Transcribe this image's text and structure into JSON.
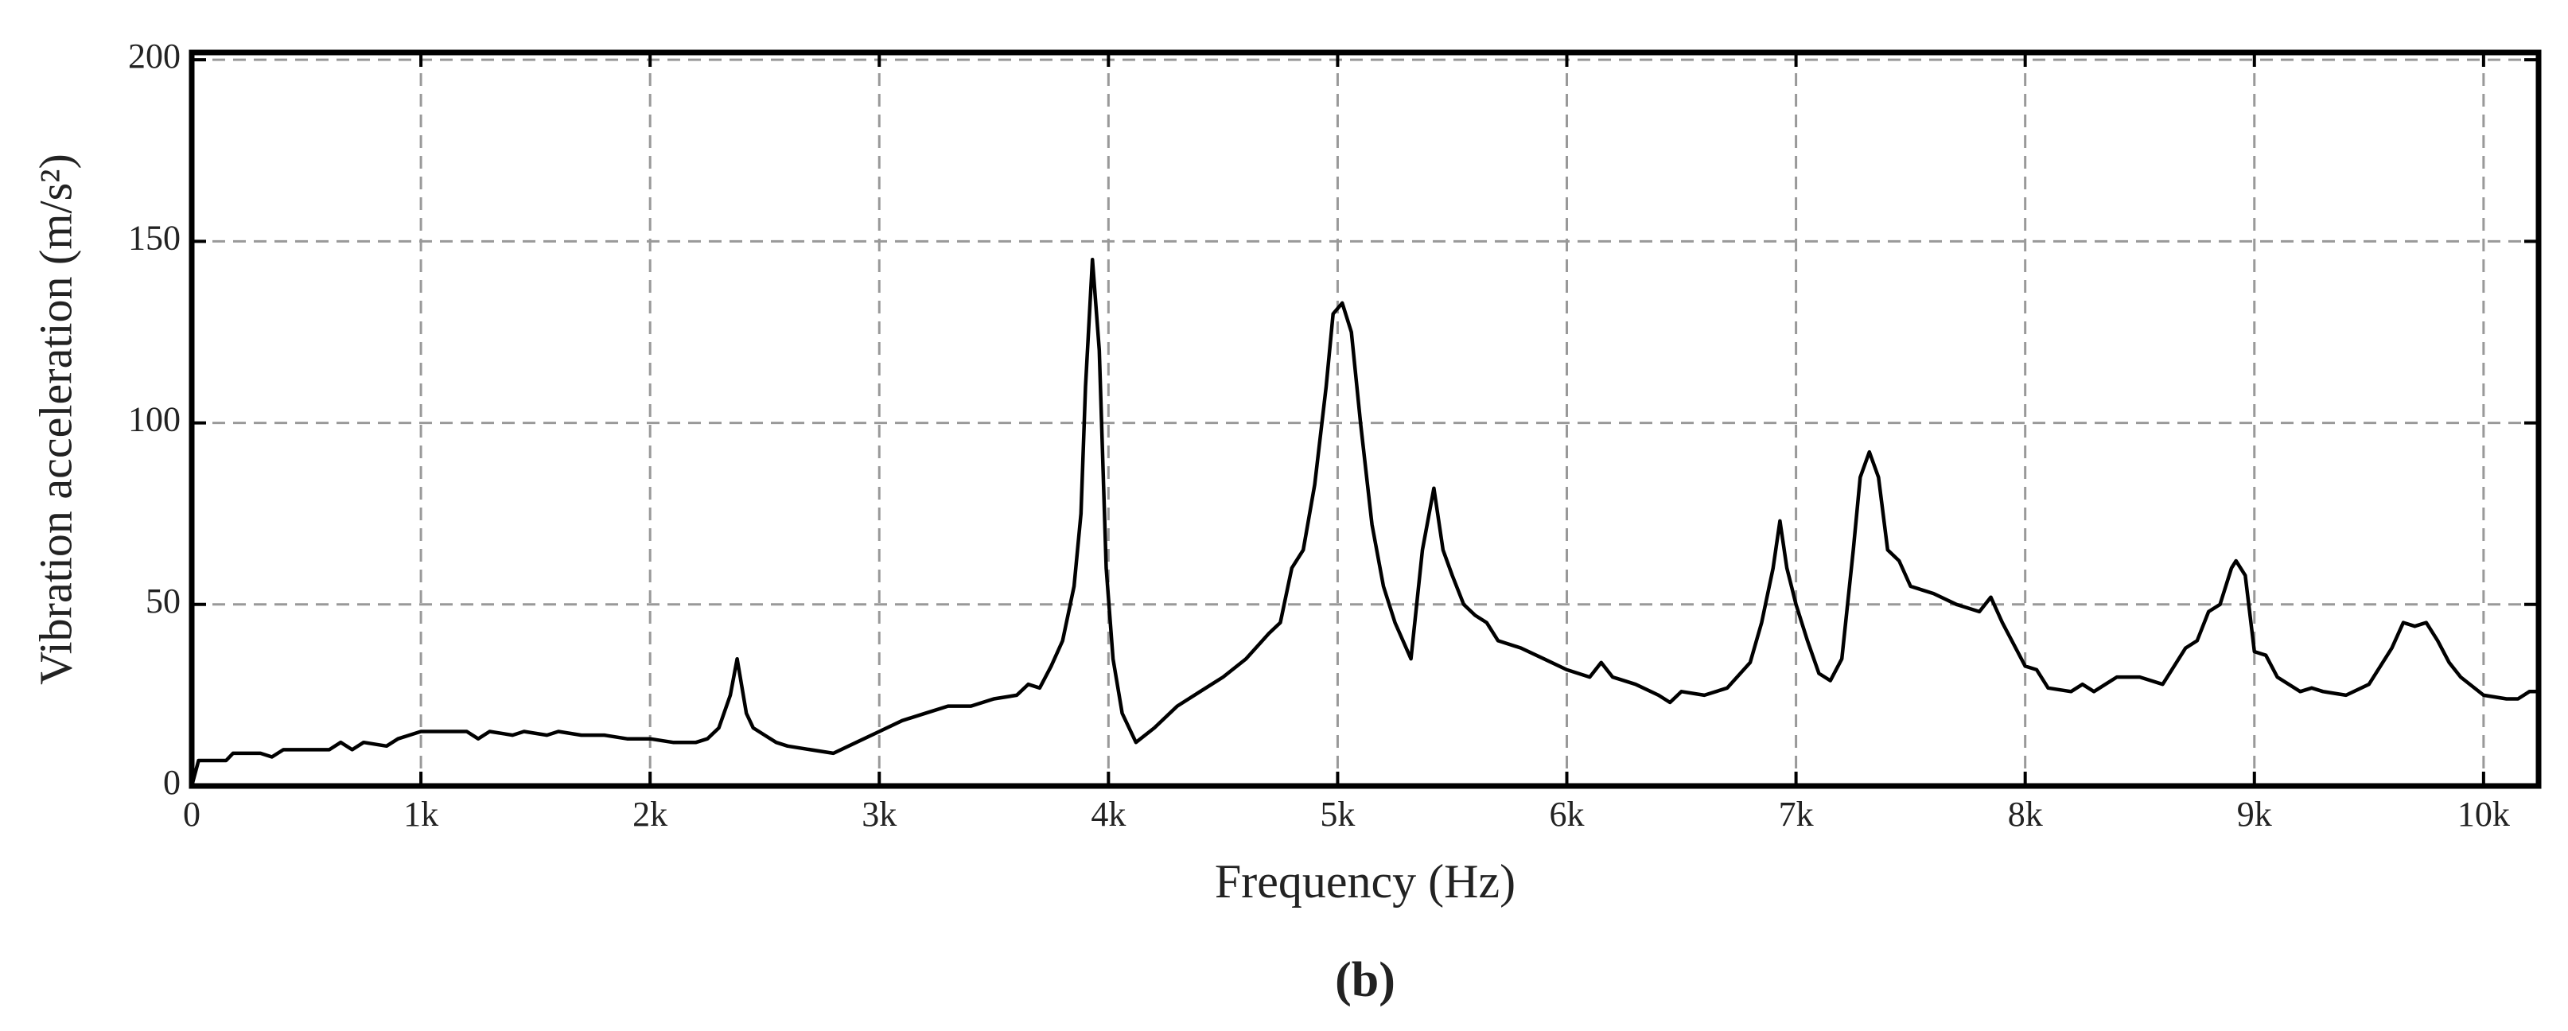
{
  "chart_data": {
    "type": "line",
    "xlabel": "Frequency (Hz)",
    "ylabel": "Vibration acceleration (m/s²)",
    "caption": "(b)",
    "color": "#000000",
    "grid": true,
    "xlim": [
      0,
      10240
    ],
    "ylim": [
      0,
      202
    ],
    "xticks": [
      0,
      {
        "value": 1000,
        "label": "1k"
      },
      {
        "value": 2000,
        "label": "2k"
      },
      {
        "value": 3000,
        "label": "3k"
      },
      {
        "value": 4000,
        "label": "4k"
      },
      {
        "value": 5000,
        "label": "5k"
      },
      {
        "value": 6000,
        "label": "6k"
      },
      {
        "value": 7000,
        "label": "7k"
      },
      {
        "value": 8000,
        "label": "8k"
      },
      {
        "value": 9000,
        "label": "9k"
      },
      {
        "value": 10000,
        "label": "10k"
      }
    ],
    "yticks": [
      0,
      50,
      100,
      150,
      200
    ],
    "x": [
      0,
      30,
      150,
      180,
      300,
      350,
      400,
      600,
      650,
      700,
      750,
      850,
      900,
      1000,
      1200,
      1250,
      1300,
      1400,
      1450,
      1550,
      1600,
      1700,
      1800,
      1900,
      2000,
      2100,
      2200,
      2250,
      2300,
      2350,
      2380,
      2420,
      2450,
      2500,
      2550,
      2600,
      2700,
      2800,
      2900,
      3000,
      3100,
      3200,
      3300,
      3400,
      3500,
      3600,
      3650,
      3700,
      3750,
      3800,
      3850,
      3880,
      3900,
      3930,
      3960,
      3990,
      4020,
      4060,
      4120,
      4200,
      4300,
      4400,
      4500,
      4600,
      4700,
      4750,
      4800,
      4850,
      4900,
      4950,
      4980,
      5020,
      5060,
      5100,
      5150,
      5200,
      5250,
      5320,
      5370,
      5420,
      5460,
      5500,
      5550,
      5600,
      5650,
      5700,
      5800,
      5900,
      6000,
      6100,
      6150,
      6200,
      6300,
      6400,
      6450,
      6500,
      6600,
      6700,
      6800,
      6850,
      6900,
      6930,
      6960,
      7000,
      7050,
      7100,
      7150,
      7200,
      7250,
      7280,
      7320,
      7360,
      7400,
      7450,
      7500,
      7600,
      7700,
      7800,
      7850,
      7900,
      8000,
      8050,
      8100,
      8200,
      8250,
      8300,
      8350,
      8400,
      8500,
      8600,
      8700,
      8750,
      8800,
      8850,
      8900,
      8920,
      8960,
      9000,
      9050,
      9100,
      9200,
      9250,
      9300,
      9400,
      9500,
      9600,
      9650,
      9700,
      9750,
      9800,
      9850,
      9900,
      10000,
      10100,
      10150,
      10200,
      10236
    ],
    "values": [
      0,
      7,
      7,
      9,
      9,
      8,
      10,
      10,
      12,
      10,
      12,
      11,
      13,
      15,
      15,
      13,
      15,
      14,
      15,
      14,
      15,
      14,
      14,
      13,
      13,
      12,
      12,
      13,
      16,
      25,
      35,
      20,
      16,
      14,
      12,
      11,
      10,
      9,
      12,
      15,
      18,
      20,
      22,
      22,
      24,
      25,
      28,
      27,
      33,
      40,
      55,
      75,
      110,
      145,
      120,
      60,
      35,
      20,
      12,
      16,
      22,
      26,
      30,
      35,
      42,
      45,
      60,
      65,
      83,
      110,
      130,
      133,
      125,
      100,
      72,
      55,
      45,
      35,
      65,
      82,
      65,
      58,
      50,
      47,
      45,
      40,
      38,
      35,
      32,
      30,
      34,
      30,
      28,
      25,
      23,
      26,
      25,
      27,
      34,
      45,
      60,
      73,
      60,
      50,
      40,
      31,
      29,
      35,
      65,
      85,
      92,
      85,
      65,
      62,
      55,
      53,
      50,
      48,
      52,
      45,
      33,
      32,
      27,
      26,
      28,
      26,
      28,
      30,
      30,
      28,
      38,
      40,
      48,
      50,
      60,
      62,
      58,
      37,
      36,
      30,
      26,
      27,
      26,
      25,
      28,
      38,
      45,
      44,
      45,
      40,
      34,
      30,
      25,
      24,
      24,
      26,
      26
    ]
  }
}
